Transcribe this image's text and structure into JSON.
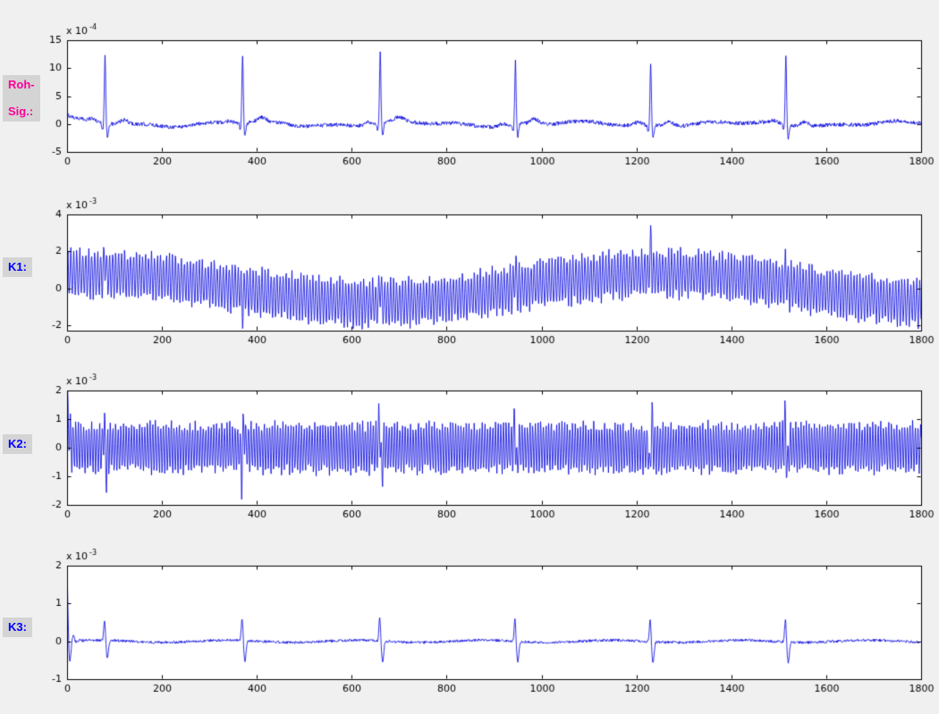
{
  "figure": {
    "background": "#f0f0f0",
    "plot_background": "#ffffff",
    "line_color": "#0000dd",
    "axis_color": "#000000",
    "tick_label_color": "#000000",
    "label_box_background": "#d4d4d4"
  },
  "chart_data": [
    {
      "type": "line",
      "title": "",
      "xlabel": "",
      "ylabel": "Roh-Sig.:",
      "label": {
        "lines": [
          "Roh-",
          "Sig.:"
        ],
        "color": "#ff0099"
      },
      "y_scale_prefix": "x 10",
      "y_scale_exponent": "-4",
      "xlim": [
        0,
        1800
      ],
      "xticks": [
        0,
        200,
        400,
        600,
        800,
        1000,
        1200,
        1400,
        1600,
        1800
      ],
      "ylim": [
        -5,
        15
      ],
      "yticks": [
        -5,
        0,
        5,
        10,
        15
      ],
      "grid": false,
      "legend": null,
      "series_name": "raw ECG signal with QRS complexes",
      "signal": {
        "kind": "ecg",
        "beats_x": [
          80,
          370,
          660,
          945,
          1230,
          1515
        ],
        "r_peak_amplitudes": [
          12,
          12.3,
          12.8,
          11.3,
          11.2,
          12.2
        ],
        "q_dip": -1.2,
        "s_dip": -2.4,
        "t_wave_amplitude": 0.8,
        "p_wave_amplitude": 0.45,
        "noise_amplitude": 0.35
      }
    },
    {
      "type": "line",
      "title": "",
      "xlabel": "",
      "ylabel": "K1:",
      "label": {
        "lines": [
          "K1:"
        ],
        "color": "#0000ff"
      },
      "y_scale_prefix": "x 10",
      "y_scale_exponent": "-3",
      "xlim": [
        0,
        1800
      ],
      "xticks": [
        0,
        200,
        400,
        600,
        800,
        1000,
        1200,
        1400,
        1600,
        1800
      ],
      "ylim": [
        -2.3,
        4
      ],
      "yticks": [
        -2,
        0,
        2,
        4
      ],
      "grid": false,
      "legend": null,
      "series_name": "component K1: high-frequency oscillation with slow baseline drift",
      "signal": {
        "kind": "oscillation_drift",
        "osc_amplitude": 1.25,
        "osc_period": 6.3,
        "drift_amplitude": 0.8,
        "drift_period": 1200,
        "drift_peak_x": 1250,
        "beats_x": [
          80,
          370,
          660,
          945,
          1230,
          1515
        ],
        "spike_amplitudes": [
          0.9,
          -1.0,
          1.1,
          0.9,
          1.6,
          0.9
        ]
      }
    },
    {
      "type": "line",
      "title": "",
      "xlabel": "",
      "ylabel": "K2:",
      "label": {
        "lines": [
          "K2:"
        ],
        "color": "#0000ff"
      },
      "y_scale_prefix": "x 10",
      "y_scale_exponent": "-3",
      "xlim": [
        0,
        1800
      ],
      "xticks": [
        0,
        200,
        400,
        600,
        800,
        1000,
        1200,
        1400,
        1600,
        1800
      ],
      "ylim": [
        -2,
        2
      ],
      "yticks": [
        -2,
        -1,
        0,
        1,
        2
      ],
      "grid": false,
      "legend": null,
      "series_name": "component K2: uniform high-frequency oscillation band with QRS residual spikes",
      "signal": {
        "kind": "oscillation",
        "osc_amplitude": 0.85,
        "osc_period": 5.6,
        "initial_transient": 2.2,
        "beats_x": [
          80,
          370,
          660,
          945,
          1230,
          1515
        ],
        "spike_amplitudes": [
          0.9,
          -0.95,
          0.95,
          0.85,
          -0.9,
          0.85
        ]
      }
    },
    {
      "type": "line",
      "title": "",
      "xlabel": "",
      "ylabel": "K3:",
      "label": {
        "lines": [
          "K3:"
        ],
        "color": "#0000ff"
      },
      "y_scale_prefix": "x 10",
      "y_scale_exponent": "-3",
      "xlim": [
        0,
        1800
      ],
      "xticks": [
        0,
        200,
        400,
        600,
        800,
        1000,
        1200,
        1400,
        1600,
        1800
      ],
      "ylim": [
        -1,
        2
      ],
      "yticks": [
        -1,
        0,
        1,
        2
      ],
      "grid": false,
      "legend": null,
      "series_name": "component K3: flat baseline with biphasic wavelets at each heartbeat",
      "signal": {
        "kind": "wavelets",
        "noise_amplitude": 0.035,
        "initial_transient": 1.85,
        "beats_x": [
          80,
          370,
          660,
          945,
          1230,
          1515
        ],
        "spike_amplitudes": [
          0.55,
          0.6,
          0.62,
          0.6,
          0.62,
          0.6
        ]
      }
    }
  ]
}
